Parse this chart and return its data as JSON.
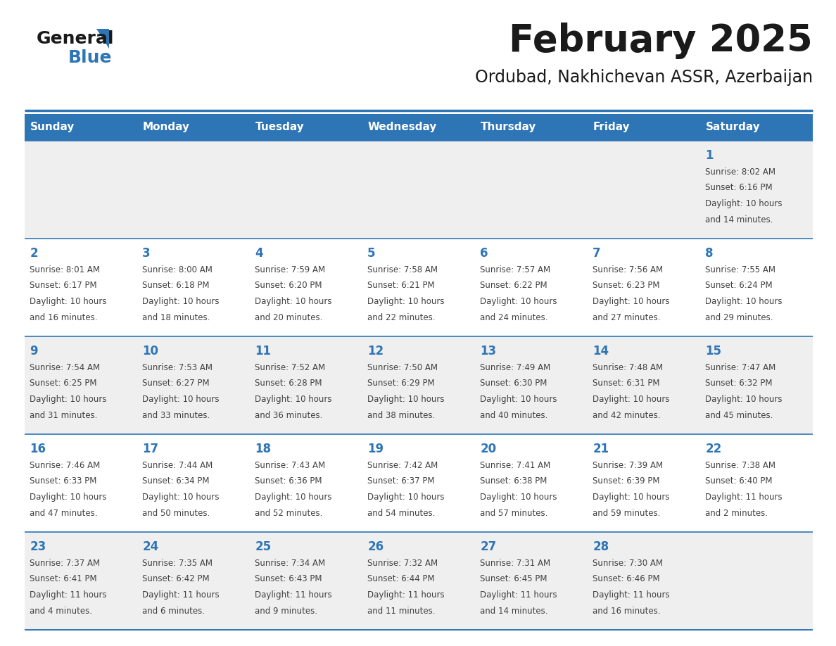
{
  "title": "February 2025",
  "subtitle": "Ordubad, Nakhichevan ASSR, Azerbaijan",
  "header_bg_color": "#2E75B6",
  "header_text_color": "#FFFFFF",
  "cell_bg_row0": "#EFEFEF",
  "cell_bg_row1": "#FFFFFF",
  "cell_bg_row2": "#EFEFEF",
  "cell_bg_row3": "#FFFFFF",
  "cell_bg_row4": "#EFEFEF",
  "day_headers": [
    "Sunday",
    "Monday",
    "Tuesday",
    "Wednesday",
    "Thursday",
    "Friday",
    "Saturday"
  ],
  "title_color": "#1a1a1a",
  "subtitle_color": "#1a1a1a",
  "header_line_color": "#2E75B6",
  "day_number_color": "#2E75B6",
  "text_color": "#404040",
  "logo_general_color": "#1a1a1a",
  "logo_blue_color": "#2E75B6",
  "logo_triangle_color": "#2E75B6",
  "calendar_data": [
    [
      null,
      null,
      null,
      null,
      null,
      null,
      {
        "day": 1,
        "sunrise": "8:02 AM",
        "sunset": "6:16 PM",
        "daylight": "10 hours and 14 minutes."
      }
    ],
    [
      {
        "day": 2,
        "sunrise": "8:01 AM",
        "sunset": "6:17 PM",
        "daylight": "10 hours and 16 minutes."
      },
      {
        "day": 3,
        "sunrise": "8:00 AM",
        "sunset": "6:18 PM",
        "daylight": "10 hours and 18 minutes."
      },
      {
        "day": 4,
        "sunrise": "7:59 AM",
        "sunset": "6:20 PM",
        "daylight": "10 hours and 20 minutes."
      },
      {
        "day": 5,
        "sunrise": "7:58 AM",
        "sunset": "6:21 PM",
        "daylight": "10 hours and 22 minutes."
      },
      {
        "day": 6,
        "sunrise": "7:57 AM",
        "sunset": "6:22 PM",
        "daylight": "10 hours and 24 minutes."
      },
      {
        "day": 7,
        "sunrise": "7:56 AM",
        "sunset": "6:23 PM",
        "daylight": "10 hours and 27 minutes."
      },
      {
        "day": 8,
        "sunrise": "7:55 AM",
        "sunset": "6:24 PM",
        "daylight": "10 hours and 29 minutes."
      }
    ],
    [
      {
        "day": 9,
        "sunrise": "7:54 AM",
        "sunset": "6:25 PM",
        "daylight": "10 hours and 31 minutes."
      },
      {
        "day": 10,
        "sunrise": "7:53 AM",
        "sunset": "6:27 PM",
        "daylight": "10 hours and 33 minutes."
      },
      {
        "day": 11,
        "sunrise": "7:52 AM",
        "sunset": "6:28 PM",
        "daylight": "10 hours and 36 minutes."
      },
      {
        "day": 12,
        "sunrise": "7:50 AM",
        "sunset": "6:29 PM",
        "daylight": "10 hours and 38 minutes."
      },
      {
        "day": 13,
        "sunrise": "7:49 AM",
        "sunset": "6:30 PM",
        "daylight": "10 hours and 40 minutes."
      },
      {
        "day": 14,
        "sunrise": "7:48 AM",
        "sunset": "6:31 PM",
        "daylight": "10 hours and 42 minutes."
      },
      {
        "day": 15,
        "sunrise": "7:47 AM",
        "sunset": "6:32 PM",
        "daylight": "10 hours and 45 minutes."
      }
    ],
    [
      {
        "day": 16,
        "sunrise": "7:46 AM",
        "sunset": "6:33 PM",
        "daylight": "10 hours and 47 minutes."
      },
      {
        "day": 17,
        "sunrise": "7:44 AM",
        "sunset": "6:34 PM",
        "daylight": "10 hours and 50 minutes."
      },
      {
        "day": 18,
        "sunrise": "7:43 AM",
        "sunset": "6:36 PM",
        "daylight": "10 hours and 52 minutes."
      },
      {
        "day": 19,
        "sunrise": "7:42 AM",
        "sunset": "6:37 PM",
        "daylight": "10 hours and 54 minutes."
      },
      {
        "day": 20,
        "sunrise": "7:41 AM",
        "sunset": "6:38 PM",
        "daylight": "10 hours and 57 minutes."
      },
      {
        "day": 21,
        "sunrise": "7:39 AM",
        "sunset": "6:39 PM",
        "daylight": "10 hours and 59 minutes."
      },
      {
        "day": 22,
        "sunrise": "7:38 AM",
        "sunset": "6:40 PM",
        "daylight": "11 hours and 2 minutes."
      }
    ],
    [
      {
        "day": 23,
        "sunrise": "7:37 AM",
        "sunset": "6:41 PM",
        "daylight": "11 hours and 4 minutes."
      },
      {
        "day": 24,
        "sunrise": "7:35 AM",
        "sunset": "6:42 PM",
        "daylight": "11 hours and 6 minutes."
      },
      {
        "day": 25,
        "sunrise": "7:34 AM",
        "sunset": "6:43 PM",
        "daylight": "11 hours and 9 minutes."
      },
      {
        "day": 26,
        "sunrise": "7:32 AM",
        "sunset": "6:44 PM",
        "daylight": "11 hours and 11 minutes."
      },
      {
        "day": 27,
        "sunrise": "7:31 AM",
        "sunset": "6:45 PM",
        "daylight": "11 hours and 14 minutes."
      },
      {
        "day": 28,
        "sunrise": "7:30 AM",
        "sunset": "6:46 PM",
        "daylight": "11 hours and 16 minutes."
      },
      null
    ]
  ]
}
